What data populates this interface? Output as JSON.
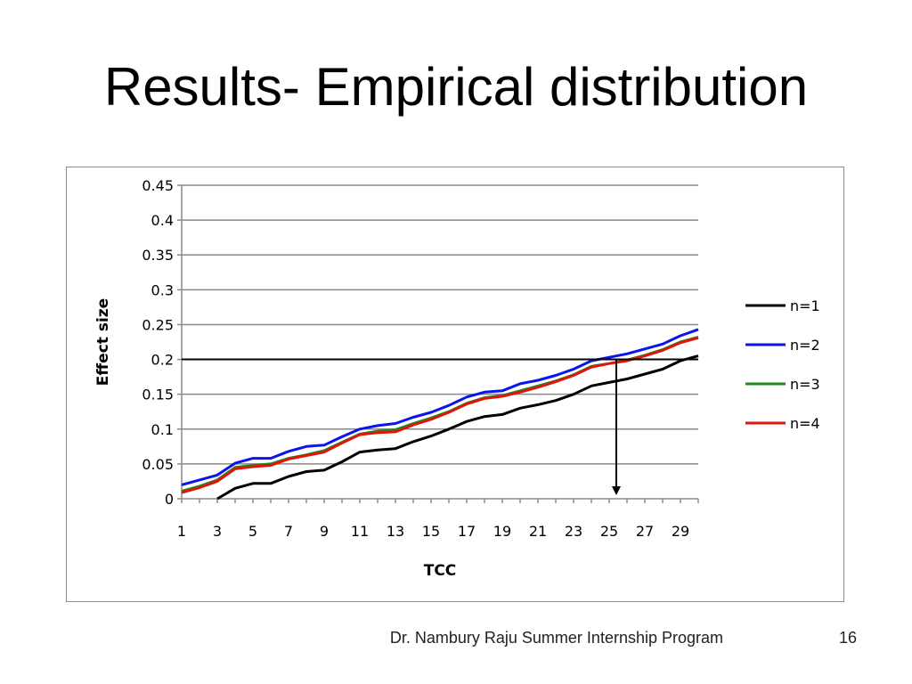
{
  "slide": {
    "title": "Results- Empirical distribution",
    "footer_credit": "Dr. Nambury Raju Summer Internship Program",
    "page_number": "16"
  },
  "chart_data": {
    "type": "line",
    "title": "",
    "xlabel": "TCC",
    "ylabel": "Effect size",
    "ylim": [
      0,
      0.45
    ],
    "y_ticks": [
      "0",
      "0.05",
      "0.1",
      "0.15",
      "0.2",
      "0.25",
      "0.3",
      "0.35",
      "0.4",
      "0.45"
    ],
    "x_tick_labels": [
      "1",
      "3",
      "5",
      "7",
      "9",
      "11",
      "13",
      "15",
      "17",
      "19",
      "21",
      "23",
      "25",
      "27",
      "29"
    ],
    "x": [
      1,
      2,
      3,
      4,
      5,
      6,
      7,
      8,
      9,
      10,
      11,
      12,
      13,
      14,
      15,
      16,
      17,
      18,
      19,
      20,
      21,
      22,
      23,
      24,
      25,
      26,
      27,
      28,
      29,
      30
    ],
    "grid": "horizontal",
    "legend_position": "right",
    "series": [
      {
        "name": "n=1",
        "color": "#000000",
        "values": [
          null,
          null,
          0.0,
          0.015,
          0.022,
          0.022,
          0.032,
          0.039,
          0.041,
          0.053,
          0.067,
          0.07,
          0.072,
          0.082,
          0.09,
          0.1,
          0.111,
          0.118,
          0.121,
          0.13,
          0.135,
          0.141,
          0.15,
          0.162,
          0.167,
          0.172,
          0.179,
          0.186,
          0.198,
          0.205
        ]
      },
      {
        "name": "n=2",
        "color": "#0a14ef",
        "values": [
          0.02,
          0.027,
          0.034,
          0.051,
          0.058,
          0.058,
          0.068,
          0.075,
          0.077,
          0.089,
          0.1,
          0.105,
          0.108,
          0.117,
          0.124,
          0.134,
          0.146,
          0.153,
          0.155,
          0.165,
          0.17,
          0.177,
          0.186,
          0.198,
          0.203,
          0.208,
          0.215,
          0.222,
          0.234,
          0.243
        ]
      },
      {
        "name": "n=3",
        "color": "#1f8b1f",
        "values": [
          0.011,
          0.018,
          0.027,
          0.045,
          0.048,
          0.05,
          0.058,
          0.063,
          0.069,
          0.081,
          0.093,
          0.097,
          0.099,
          0.108,
          0.116,
          0.125,
          0.137,
          0.145,
          0.148,
          0.155,
          0.162,
          0.169,
          0.178,
          0.19,
          0.194,
          0.199,
          0.206,
          0.214,
          0.225,
          0.232
        ]
      },
      {
        "name": "n=4",
        "color": "#e0140a",
        "values": [
          0.009,
          0.016,
          0.025,
          0.043,
          0.046,
          0.048,
          0.057,
          0.062,
          0.067,
          0.08,
          0.092,
          0.095,
          0.096,
          0.106,
          0.114,
          0.124,
          0.136,
          0.144,
          0.147,
          0.153,
          0.16,
          0.168,
          0.177,
          0.189,
          0.194,
          0.198,
          0.205,
          0.213,
          0.224,
          0.231
        ]
      }
    ],
    "annotations": [
      {
        "kind": "horizontal-reference-line",
        "y": 0.2,
        "color": "#000000"
      },
      {
        "kind": "vertical-down-arrow",
        "x": 25.4,
        "from_y": 0.2,
        "to_y": 0,
        "color": "#000000"
      }
    ]
  }
}
